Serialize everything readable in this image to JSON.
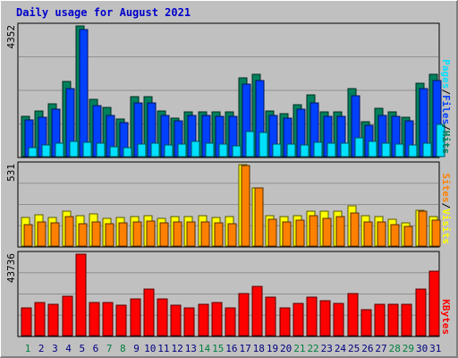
{
  "title": "Daily usage for August 2021",
  "colors": {
    "background": "#c0c0c0",
    "title": "#0000cc",
    "hits": "#00805c",
    "files": "#0040ff",
    "pages": "#00e0ff",
    "visits": "#ffff00",
    "sites": "#ff8000",
    "kbytes": "#ff0000",
    "weekend_day_label": "#008040",
    "weekday_label": "#000080"
  },
  "chart_data": [
    {
      "type": "bar",
      "panel": "hits-files-pages",
      "y_tick_label": "4352",
      "ylim": [
        0,
        4352
      ],
      "grid": true,
      "legend": [
        {
          "text": "Pages",
          "color": "#00e0ff"
        },
        {
          "text": "/",
          "color": "#000000"
        },
        {
          "text": "Files",
          "color": "#0040ff"
        },
        {
          "text": "/",
          "color": "#000000"
        },
        {
          "text": "Hits",
          "color": "#00805c"
        }
      ],
      "categories": [
        "1",
        "2",
        "3",
        "4",
        "5",
        "6",
        "7",
        "8",
        "9",
        "10",
        "11",
        "12",
        "13",
        "14",
        "15",
        "16",
        "17",
        "18",
        "19",
        "20",
        "21",
        "22",
        "23",
        "24",
        "25",
        "26",
        "27",
        "28",
        "29",
        "30",
        "31"
      ],
      "series": [
        {
          "name": "Hits",
          "values": [
            1350,
            1525,
            1760,
            2515,
            4352,
            1895,
            1640,
            1240,
            1995,
            1995,
            1510,
            1295,
            1495,
            1495,
            1495,
            1495,
            2610,
            2750,
            1530,
            1425,
            1735,
            2055,
            1495,
            1495,
            2255,
            1175,
            1610,
            1495,
            1310,
            2455,
            2750
          ]
        },
        {
          "name": "Files",
          "values": [
            1215,
            1325,
            1590,
            2275,
            4220,
            1695,
            1385,
            1130,
            1790,
            1790,
            1380,
            1180,
            1370,
            1370,
            1355,
            1355,
            2405,
            2520,
            1370,
            1280,
            1590,
            1790,
            1355,
            1355,
            2025,
            1045,
            1385,
            1355,
            1180,
            2275,
            2520
          ]
        },
        {
          "name": "Pages",
          "values": [
            295,
            390,
            440,
            520,
            490,
            440,
            315,
            305,
            430,
            440,
            375,
            415,
            500,
            445,
            415,
            360,
            835,
            800,
            405,
            405,
            380,
            475,
            455,
            455,
            620,
            500,
            440,
            405,
            400,
            445,
            1065
          ]
        }
      ]
    },
    {
      "type": "bar",
      "panel": "sites-visits",
      "y_tick_label": "531",
      "ylim": [
        0,
        531
      ],
      "grid": true,
      "legend": [
        {
          "text": "Sites",
          "color": "#ff8000"
        },
        {
          "text": "/",
          "color": "#000000"
        },
        {
          "text": "Visits",
          "color": "#ffff00"
        }
      ],
      "categories": [
        "1",
        "2",
        "3",
        "4",
        "5",
        "6",
        "7",
        "8",
        "9",
        "10",
        "11",
        "12",
        "13",
        "14",
        "15",
        "16",
        "17",
        "18",
        "19",
        "20",
        "21",
        "22",
        "23",
        "24",
        "25",
        "26",
        "27",
        "28",
        "29",
        "30",
        "31"
      ],
      "series": [
        {
          "name": "Visits",
          "values": [
            185,
            205,
            185,
            225,
            200,
            210,
            180,
            185,
            195,
            200,
            180,
            195,
            195,
            200,
            185,
            190,
            531,
            380,
            200,
            195,
            200,
            230,
            225,
            225,
            260,
            200,
            195,
            175,
            150,
            235,
            195
          ]
        },
        {
          "name": "Sites",
          "values": [
            140,
            155,
            150,
            190,
            145,
            155,
            145,
            150,
            160,
            165,
            150,
            160,
            160,
            160,
            150,
            145,
            525,
            380,
            175,
            160,
            170,
            200,
            180,
            190,
            215,
            160,
            160,
            140,
            130,
            225,
            170
          ]
        }
      ]
    },
    {
      "type": "bar",
      "panel": "kbytes",
      "y_tick_label": "43736",
      "ylim": [
        0,
        43736
      ],
      "grid": true,
      "legend": [
        {
          "text": "KBytes",
          "color": "#ff0000"
        }
      ],
      "categories": [
        "1",
        "2",
        "3",
        "4",
        "5",
        "6",
        "7",
        "8",
        "9",
        "10",
        "11",
        "12",
        "13",
        "14",
        "15",
        "16",
        "17",
        "18",
        "19",
        "20",
        "21",
        "22",
        "23",
        "24",
        "25",
        "26",
        "27",
        "28",
        "29",
        "30",
        "31"
      ],
      "series": [
        {
          "name": "KBytes",
          "values": [
            14900,
            17900,
            16700,
            21200,
            43736,
            17900,
            17900,
            16200,
            19800,
            25000,
            19800,
            16200,
            14900,
            16700,
            17900,
            14900,
            22400,
            26200,
            20500,
            14900,
            17500,
            20500,
            18700,
            17500,
            22400,
            13700,
            16700,
            16700,
            16700,
            25000,
            34600
          ]
        }
      ]
    }
  ],
  "x_axis": {
    "day_labels": [
      "1",
      "2",
      "3",
      "4",
      "5",
      "6",
      "7",
      "8",
      "9",
      "10",
      "11",
      "12",
      "13",
      "14",
      "15",
      "16",
      "17",
      "18",
      "19",
      "20",
      "21",
      "22",
      "23",
      "24",
      "25",
      "26",
      "27",
      "28",
      "29",
      "30",
      "31"
    ],
    "weekend_days": [
      "1",
      "7",
      "8",
      "14",
      "15",
      "21",
      "22",
      "28",
      "29"
    ]
  }
}
